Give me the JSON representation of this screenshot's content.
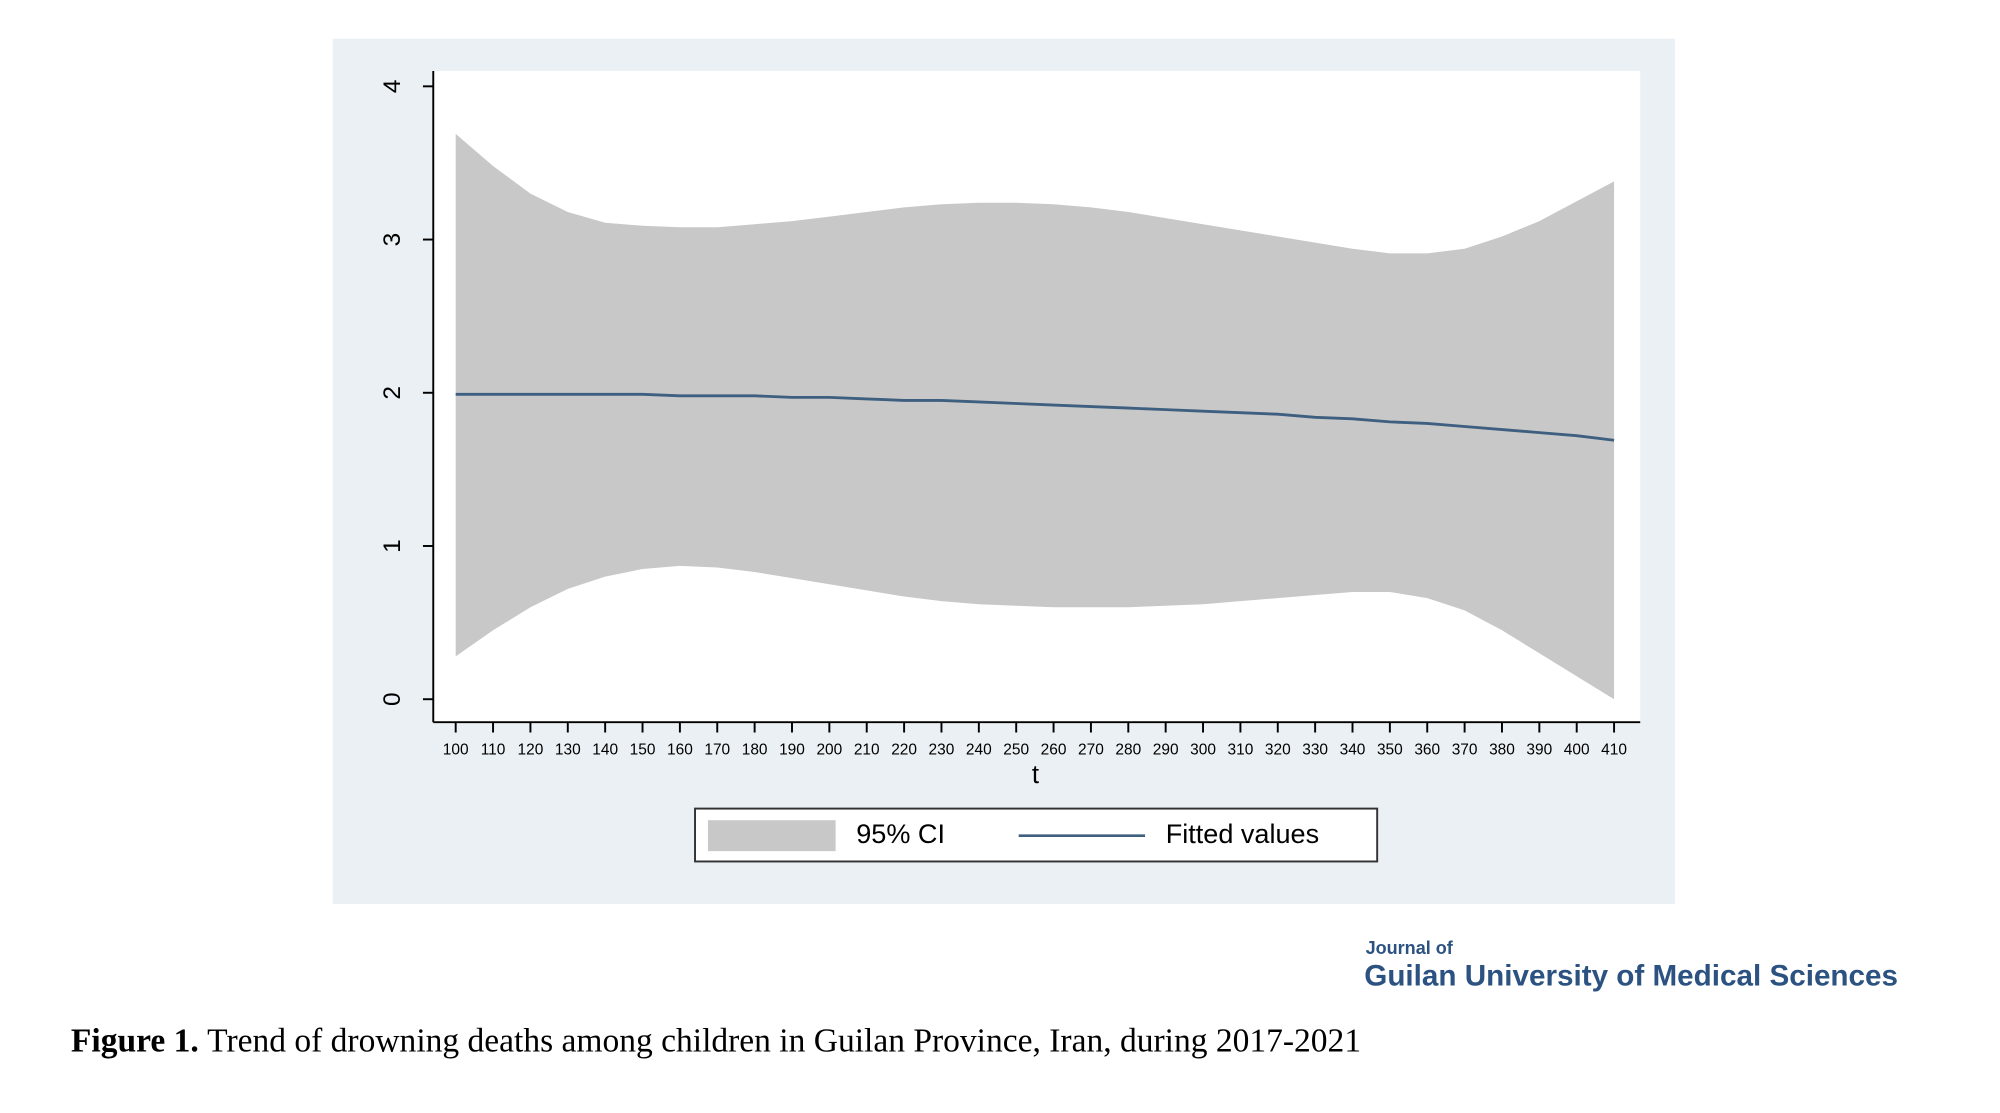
{
  "chart_data": {
    "type": "line",
    "x_label": "t",
    "x": [
      100,
      110,
      120,
      130,
      140,
      150,
      160,
      170,
      180,
      190,
      200,
      210,
      220,
      230,
      240,
      250,
      260,
      270,
      280,
      290,
      300,
      310,
      320,
      330,
      340,
      350,
      360,
      370,
      380,
      390,
      400,
      410
    ],
    "series": [
      {
        "name": "95% CI",
        "color": "#c8c8c8",
        "upper": [
          3.69,
          3.48,
          3.3,
          3.18,
          3.11,
          3.09,
          3.08,
          3.08,
          3.1,
          3.12,
          3.15,
          3.18,
          3.21,
          3.23,
          3.24,
          3.24,
          3.23,
          3.21,
          3.18,
          3.14,
          3.1,
          3.06,
          3.02,
          2.98,
          2.94,
          2.91,
          2.91,
          2.94,
          3.02,
          3.12,
          3.25,
          3.38
        ],
        "lower": [
          0.28,
          0.45,
          0.6,
          0.72,
          0.8,
          0.85,
          0.87,
          0.86,
          0.83,
          0.79,
          0.75,
          0.71,
          0.67,
          0.64,
          0.62,
          0.61,
          0.6,
          0.6,
          0.6,
          0.61,
          0.62,
          0.64,
          0.66,
          0.68,
          0.7,
          0.7,
          0.66,
          0.58,
          0.45,
          0.3,
          0.15,
          0.0
        ]
      },
      {
        "name": "Fitted values",
        "color": "#3e5f80",
        "values": [
          1.99,
          1.99,
          1.99,
          1.99,
          1.99,
          1.99,
          1.98,
          1.98,
          1.98,
          1.97,
          1.97,
          1.96,
          1.95,
          1.95,
          1.94,
          1.93,
          1.92,
          1.91,
          1.9,
          1.89,
          1.88,
          1.87,
          1.86,
          1.84,
          1.83,
          1.81,
          1.8,
          1.78,
          1.76,
          1.74,
          1.72,
          1.69
        ]
      }
    ],
    "xlim": [
      94,
      417
    ],
    "ylim": [
      -0.15,
      4.1
    ],
    "xticks": [
      100,
      110,
      120,
      130,
      140,
      150,
      160,
      170,
      180,
      190,
      200,
      210,
      220,
      230,
      240,
      250,
      260,
      270,
      280,
      290,
      300,
      310,
      320,
      330,
      340,
      350,
      360,
      370,
      380,
      390,
      400,
      410
    ],
    "yticks": [
      0,
      1,
      2,
      3,
      4
    ],
    "grid": true
  },
  "logo": {
    "line1": "Journal of",
    "line2": "Guilan University of Medical Sciences"
  },
  "caption": {
    "label": "Figure 1.",
    "text": "Trend of drowning deaths among children in Guilan Province, Iran, during 2017-2021"
  }
}
